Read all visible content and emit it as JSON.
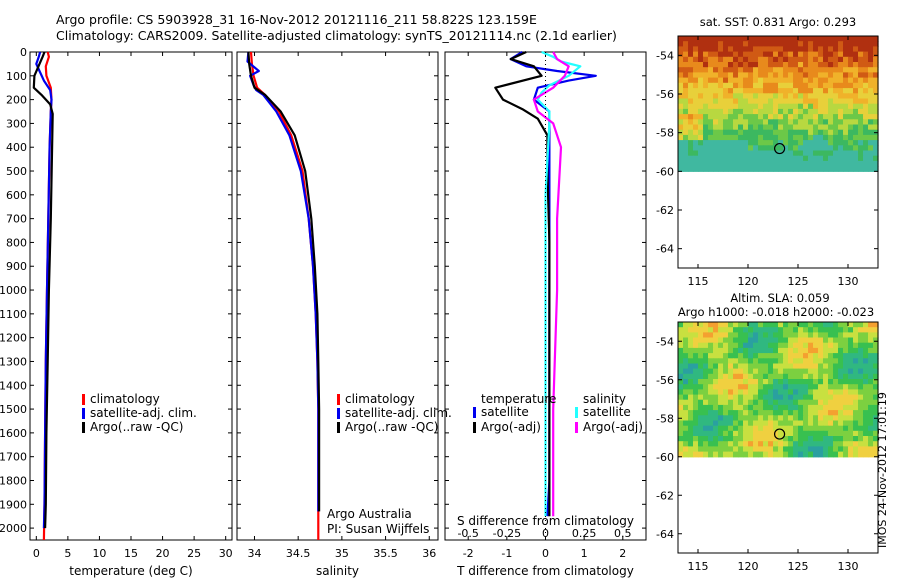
{
  "titles": {
    "line1": "Argo profile: CS 5903928_31 16-Nov-2012 20121116_211 58.822S 123.159E",
    "line2": "Climatology: CARS2009. Satellite-adjusted climatology: synTS_20121114.nc (2.1d earlier)"
  },
  "colors": {
    "red": "#ff0000",
    "blue": "#0000ee",
    "black": "#000000",
    "cyan": "#22ffff",
    "magenta": "#ff00ff"
  },
  "depth_ticks": [
    0,
    100,
    200,
    300,
    400,
    500,
    600,
    700,
    800,
    900,
    1000,
    1100,
    1200,
    1300,
    1400,
    1500,
    1600,
    1700,
    1800,
    1900,
    2000
  ],
  "legend_labels": {
    "climatology": "climatology",
    "satellite": "satellite-adj. clim.",
    "argo": "Argo(..raw -QC)"
  },
  "credits": {
    "line1": "Argo Australia",
    "line2": "PI: Susan Wijffels"
  },
  "stamp": "IMOS 24-Nov-2012 17:01:19",
  "chart_data": [
    {
      "id": "temperature",
      "type": "line",
      "xlabel": "temperature (deg C)",
      "ylabel": "",
      "xlim": [
        -1,
        31
      ],
      "ylim": [
        2050,
        0
      ],
      "xticks": [
        0,
        5,
        10,
        15,
        20,
        25,
        30
      ],
      "series": [
        {
          "name": "climatology",
          "color": "red",
          "x": [
            1.8,
            2.0,
            1.5,
            1.6,
            2.3,
            2.4,
            2.3,
            2.1,
            1.9,
            1.7,
            1.5,
            1.4,
            1.3,
            1.2
          ],
          "y": [
            0,
            20,
            60,
            100,
            150,
            200,
            250,
            400,
            700,
            1000,
            1300,
            1600,
            1900,
            2050
          ]
        },
        {
          "name": "satellite-adj. clim.",
          "color": "blue",
          "x": [
            0.6,
            0.4,
            0.0,
            0.5,
            1.2,
            2.2,
            2.4,
            2.3,
            2.1,
            1.9,
            1.7,
            1.5,
            1.4,
            1.3,
            1.2
          ],
          "y": [
            0,
            20,
            50,
            80,
            120,
            160,
            200,
            250,
            400,
            700,
            1000,
            1300,
            1600,
            1900,
            2000
          ]
        },
        {
          "name": "Argo(..raw -QC)",
          "color": "black",
          "x": [
            1.3,
            1.0,
            0.5,
            -0.3,
            -0.4,
            0.8,
            2.2,
            2.6,
            2.5,
            2.3,
            2.0,
            1.8,
            1.6,
            1.5,
            1.4
          ],
          "y": [
            0,
            20,
            50,
            100,
            150,
            180,
            220,
            260,
            400,
            700,
            1000,
            1300,
            1600,
            1900,
            2000
          ]
        }
      ]
    },
    {
      "id": "salinity",
      "type": "line",
      "xlabel": "salinity",
      "ylabel": "",
      "xlim": [
        33.8,
        36.1
      ],
      "ylim": [
        2050,
        0
      ],
      "xticks": [
        34,
        34.5,
        35,
        35.5,
        36
      ],
      "series": [
        {
          "name": "climatology",
          "color": "red",
          "x": [
            33.96,
            33.97,
            33.99,
            34.03,
            34.12,
            34.28,
            34.42,
            34.55,
            34.62,
            34.67,
            34.7,
            34.72,
            34.73,
            34.73,
            34.73,
            34.73
          ],
          "y": [
            0,
            50,
            100,
            150,
            180,
            250,
            350,
            500,
            700,
            900,
            1100,
            1300,
            1500,
            1700,
            1900,
            2050
          ]
        },
        {
          "name": "satellite-adj. clim.",
          "color": "blue",
          "x": [
            33.93,
            33.92,
            34.05,
            33.95,
            33.99,
            34.02,
            34.1,
            34.25,
            34.4,
            34.53,
            34.62,
            34.67,
            34.7,
            34.72,
            34.73,
            34.73,
            34.73
          ],
          "y": [
            0,
            40,
            80,
            100,
            140,
            160,
            180,
            250,
            350,
            500,
            700,
            900,
            1100,
            1300,
            1500,
            1700,
            1930
          ]
        },
        {
          "name": "Argo(..raw -QC)",
          "color": "black",
          "x": [
            33.93,
            33.94,
            33.96,
            34.0,
            34.12,
            34.3,
            34.46,
            34.58,
            34.65,
            34.69,
            34.72,
            34.73,
            34.74,
            34.74,
            34.74
          ],
          "y": [
            0,
            50,
            100,
            150,
            180,
            250,
            350,
            500,
            700,
            900,
            1100,
            1300,
            1500,
            1700,
            1930
          ]
        }
      ]
    },
    {
      "id": "differences",
      "type": "line",
      "xlabel": "T difference from climatology",
      "xlabel_top": "S difference from climatology",
      "xlim": [
        -2.6,
        2.6
      ],
      "ylim": [
        2050,
        0
      ],
      "xticks": [
        -2,
        -1,
        0,
        1,
        2
      ],
      "top_ticks": [
        "-0.5",
        "-0.25",
        "0",
        "0.25",
        "0.5"
      ],
      "legend_headers": [
        "temperature",
        "salinity"
      ],
      "legend_items": [
        {
          "label": "satellite",
          "color": "blue",
          "column": 0
        },
        {
          "label": "Argo(-adj)",
          "color": "black",
          "column": 0
        },
        {
          "label": "satellite",
          "color": "cyan",
          "column": 1
        },
        {
          "label": "Argo(-adj)",
          "color": "magenta",
          "column": 1
        }
      ],
      "series": [
        {
          "name": "temperature satellite",
          "color": "blue",
          "x": [
            -0.6,
            -0.9,
            -0.5,
            0.3,
            1.3,
            0.6,
            -0.2,
            -0.3,
            0.1,
            0.1,
            0.1,
            0.1,
            0.1,
            0.1,
            0.05
          ],
          "y": [
            0,
            30,
            60,
            80,
            100,
            120,
            150,
            200,
            250,
            400,
            700,
            1000,
            1400,
            1800,
            1950
          ]
        },
        {
          "name": "temperature Argo(-adj)",
          "color": "black",
          "x": [
            -0.5,
            -0.9,
            -0.3,
            -0.1,
            -1.3,
            -1.1,
            -0.6,
            -0.2,
            0.05,
            0.05,
            0.1,
            0.1,
            0.1,
            0.1
          ],
          "y": [
            0,
            30,
            60,
            100,
            150,
            200,
            240,
            280,
            350,
            500,
            800,
            1200,
            1600,
            1950
          ]
        },
        {
          "name": "salinity satellite",
          "color": "cyan",
          "x": [
            -0.1,
            0.2,
            0.4,
            0.9,
            0.6,
            0.1,
            -0.1,
            -0.2,
            0.1,
            0.1,
            0.0,
            0.0,
            0.0,
            0.0,
            0.0
          ],
          "y": [
            0,
            20,
            40,
            60,
            100,
            140,
            170,
            200,
            250,
            300,
            600,
            900,
            1200,
            1500,
            1950
          ]
        },
        {
          "name": "salinity Argo(-adj)",
          "color": "magenta",
          "x": [
            0.2,
            0.3,
            0.6,
            0.5,
            0.2,
            -0.3,
            -0.2,
            0.2,
            0.4,
            0.3,
            0.3,
            0.2,
            0.2
          ],
          "y": [
            0,
            30,
            60,
            100,
            150,
            200,
            250,
            300,
            400,
            700,
            1000,
            1500,
            1950
          ]
        }
      ]
    },
    {
      "id": "sst_map",
      "type": "heatmap",
      "title": "sat. SST: 0.831 Argo: 0.293",
      "xlim": [
        113,
        133
      ],
      "ylim": [
        -65,
        -53
      ],
      "xticks": [
        115,
        120,
        125,
        130
      ],
      "yticks": [
        -54,
        -56,
        -58,
        -60,
        -62,
        -64
      ],
      "marker": {
        "lon": 123.159,
        "lat": -58.822
      }
    },
    {
      "id": "sla_map",
      "type": "heatmap",
      "title": "Altim. SLA: 0.059",
      "subtitle": "Argo h1000: -0.018 h2000: -0.023",
      "xlim": [
        113,
        133
      ],
      "ylim": [
        -65,
        -53
      ],
      "xticks": [
        115,
        120,
        125,
        130
      ],
      "yticks": [
        -54,
        -56,
        -58,
        -60,
        -62,
        -64
      ],
      "marker": {
        "lon": 123.159,
        "lat": -58.822
      }
    }
  ]
}
